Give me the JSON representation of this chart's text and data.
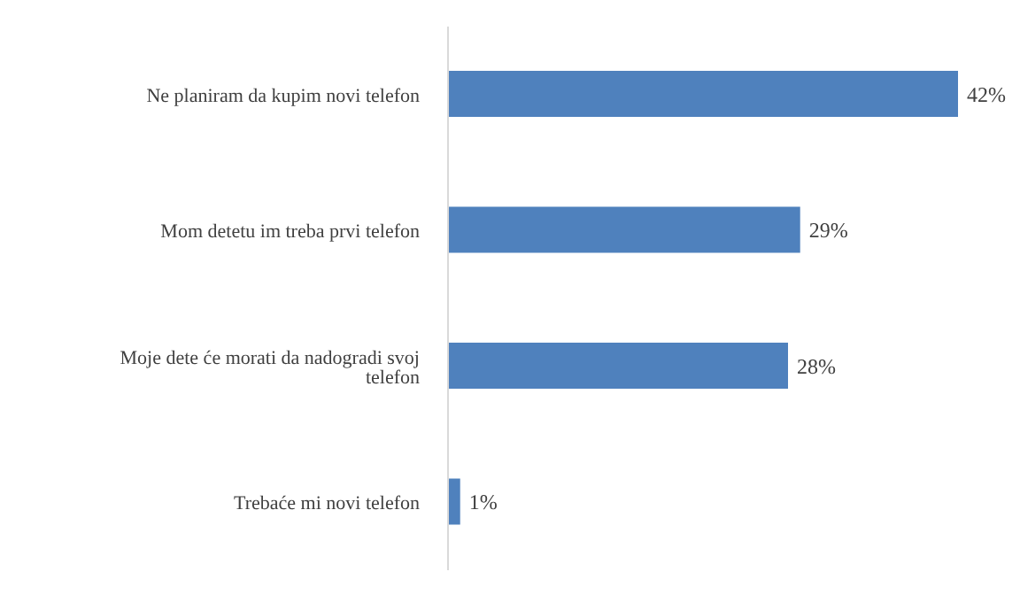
{
  "chart_data": {
    "type": "bar",
    "orientation": "horizontal",
    "categories": [
      "Ne planiram da kupim novi telefon",
      "Mom detetu im treba prvi telefon",
      "Moje dete će morati da nadogradi svoj telefon",
      "Trebaće mi novi telefon"
    ],
    "values": [
      42,
      29,
      28,
      1
    ],
    "value_labels": [
      "42%",
      "29%",
      "28%",
      "1%"
    ],
    "color": "#4f81bd"
  }
}
